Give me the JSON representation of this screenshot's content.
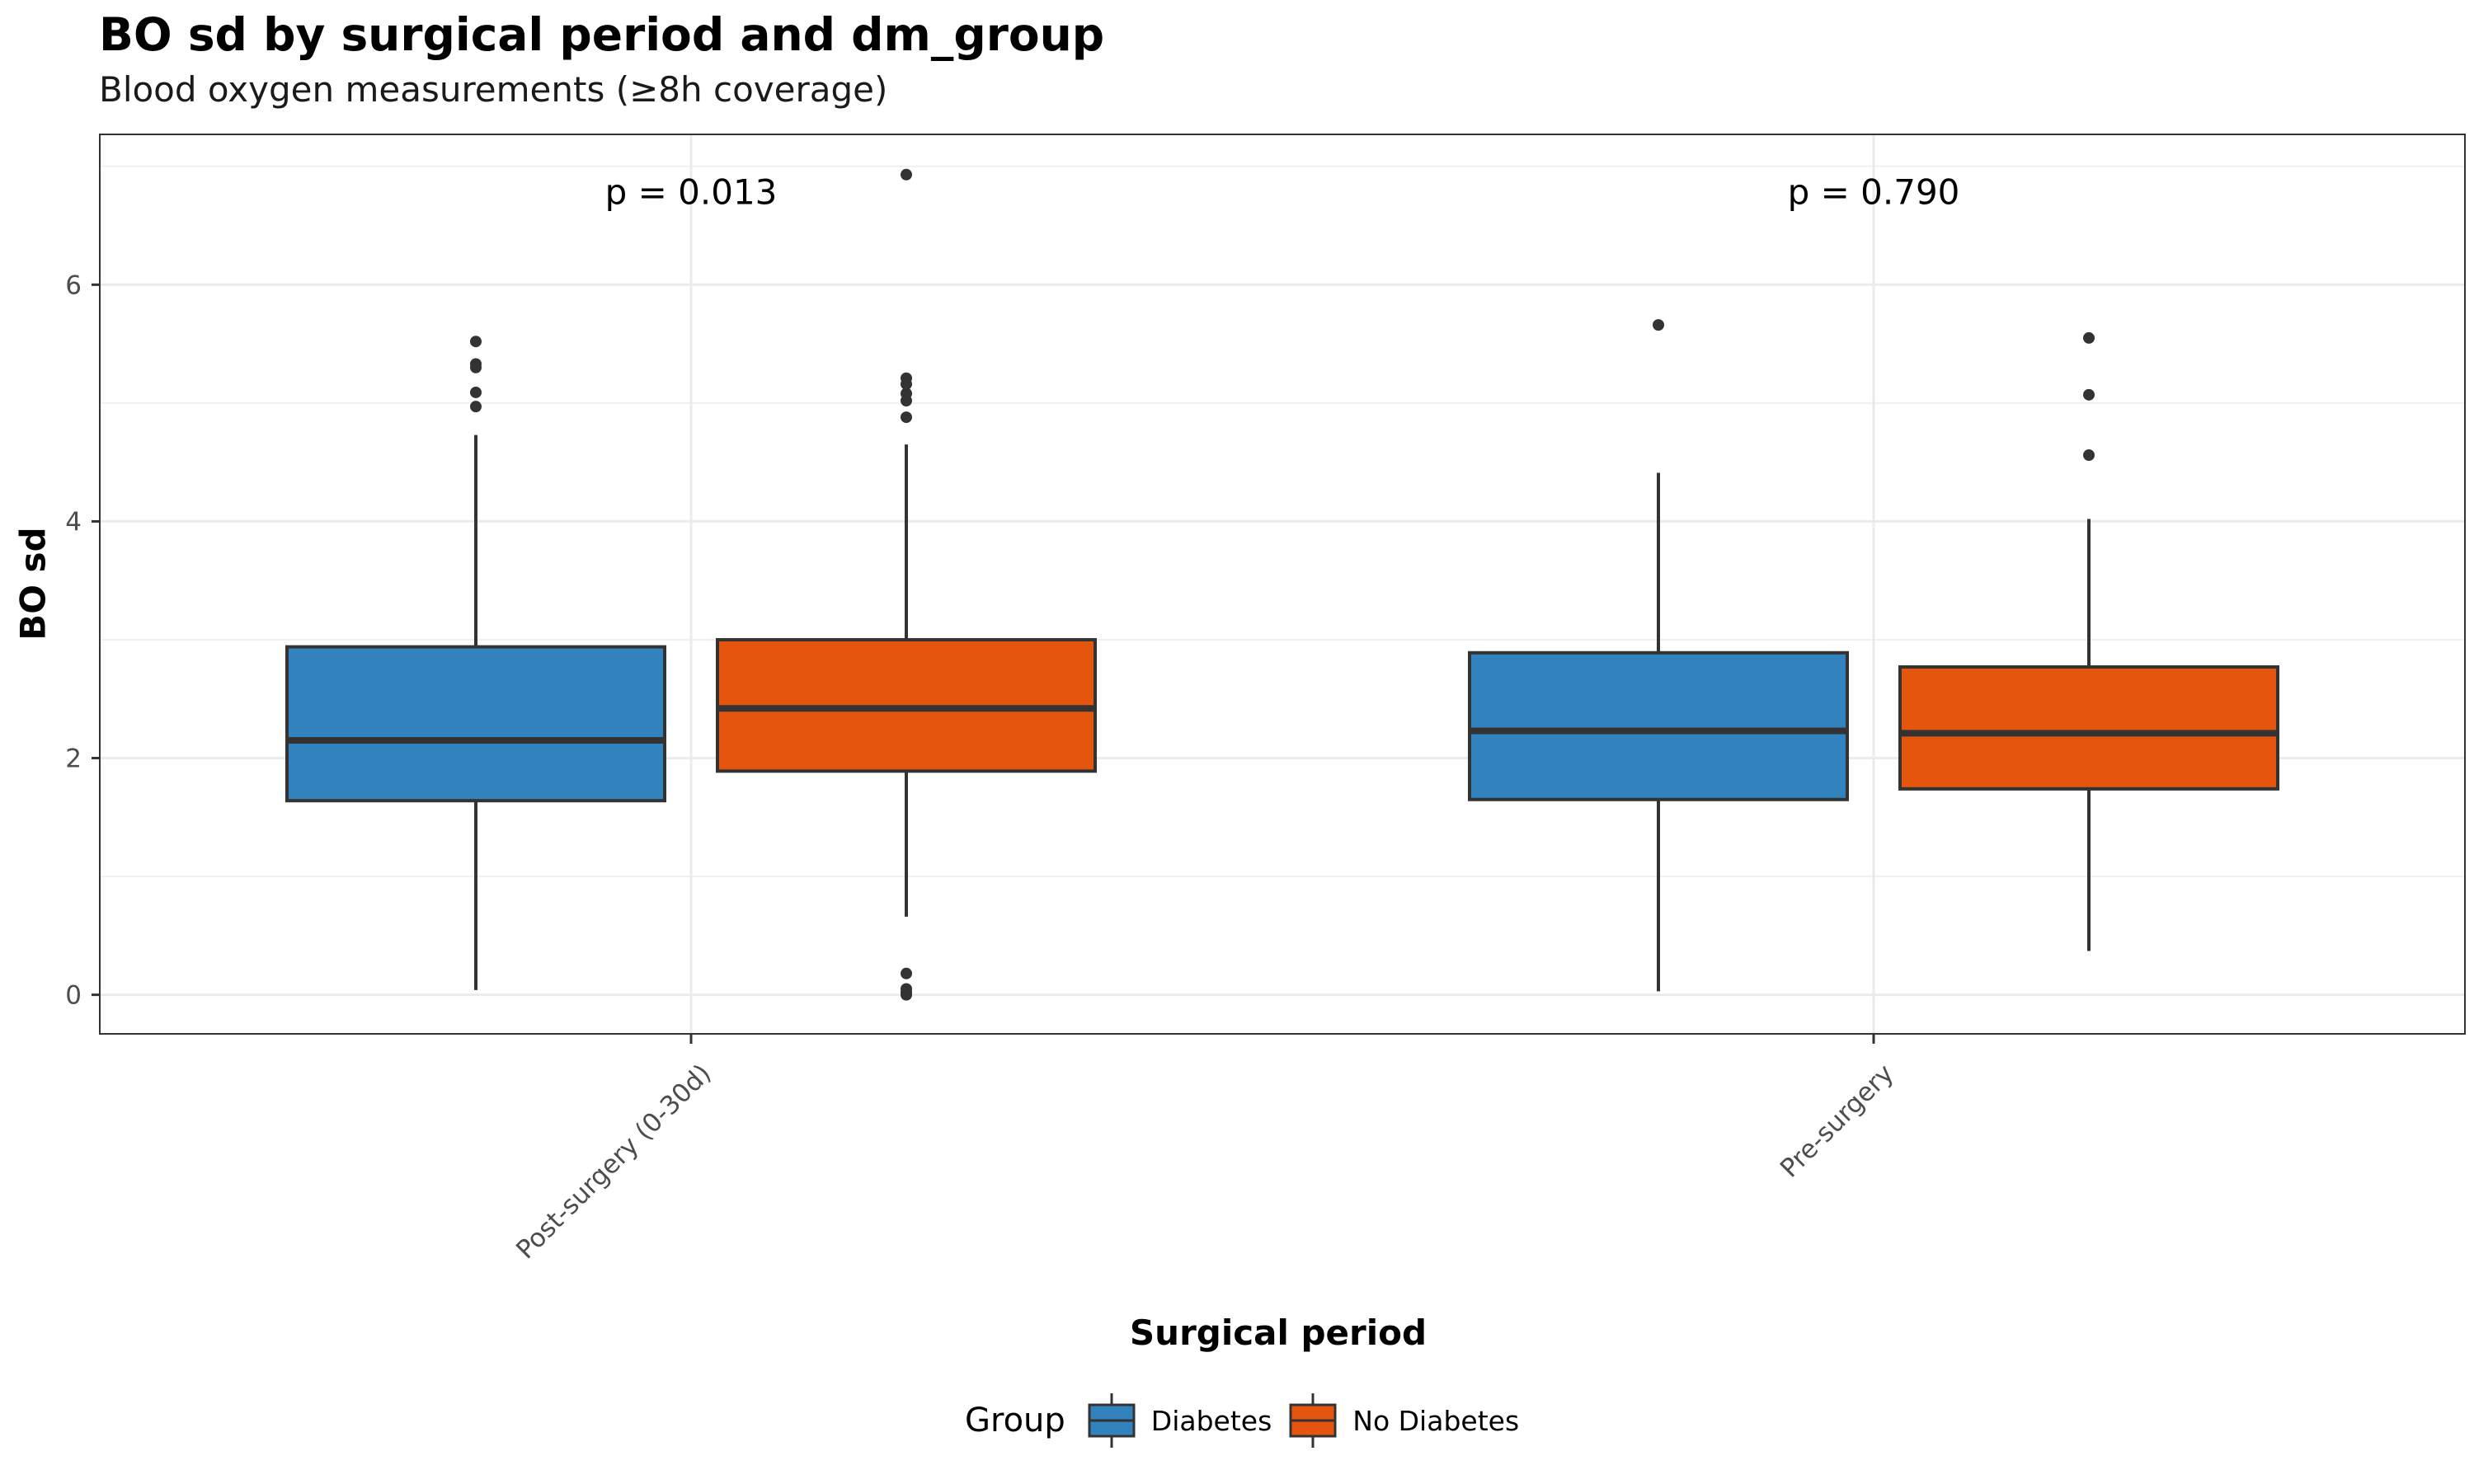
{
  "chart_data": {
    "type": "boxplot",
    "title": "BO sd by surgical period and dm_group",
    "subtitle": "Blood oxygen measurements (≥8h coverage)",
    "xlabel": "Surgical period",
    "ylabel": "BO sd",
    "ylim": [
      -0.33,
      7.27
    ],
    "y_ticks": [
      0,
      2,
      4,
      6
    ],
    "grid": true,
    "categories": [
      "Post-surgery (0-30d)",
      "Pre-surgery"
    ],
    "legend": {
      "title": "Group",
      "position": "bottom"
    },
    "series": [
      {
        "name": "Diabetes",
        "color": "#3182BD",
        "boxes": [
          {
            "category": "Post-surgery (0-30d)",
            "min": 0.04,
            "q1": 1.64,
            "median": 2.15,
            "q3": 2.94,
            "max": 4.73,
            "outliers": [
              4.97,
              5.09,
              5.3,
              5.33,
              5.52
            ]
          },
          {
            "category": "Pre-surgery",
            "min": 0.03,
            "q1": 1.65,
            "median": 2.23,
            "q3": 2.89,
            "max": 4.41,
            "outliers": [
              5.66
            ]
          }
        ]
      },
      {
        "name": "No Diabetes",
        "color": "#E6550D",
        "boxes": [
          {
            "category": "Post-surgery (0-30d)",
            "min": 0.66,
            "q1": 1.89,
            "median": 2.42,
            "q3": 3.0,
            "max": 4.65,
            "outliers": [
              0.0,
              0.02,
              0.05,
              0.18,
              4.88,
              5.02,
              5.08,
              5.16,
              5.21,
              6.93
            ]
          },
          {
            "category": "Pre-surgery",
            "min": 0.37,
            "q1": 1.74,
            "median": 2.21,
            "q3": 2.77,
            "max": 4.02,
            "outliers": [
              4.56,
              5.07,
              5.55
            ]
          }
        ]
      }
    ],
    "annotations": [
      {
        "category": "Post-surgery (0-30d)",
        "text": "p = 0.013",
        "y": 6.68
      },
      {
        "category": "Pre-surgery",
        "text": "p = 0.790",
        "y": 6.68
      }
    ]
  }
}
